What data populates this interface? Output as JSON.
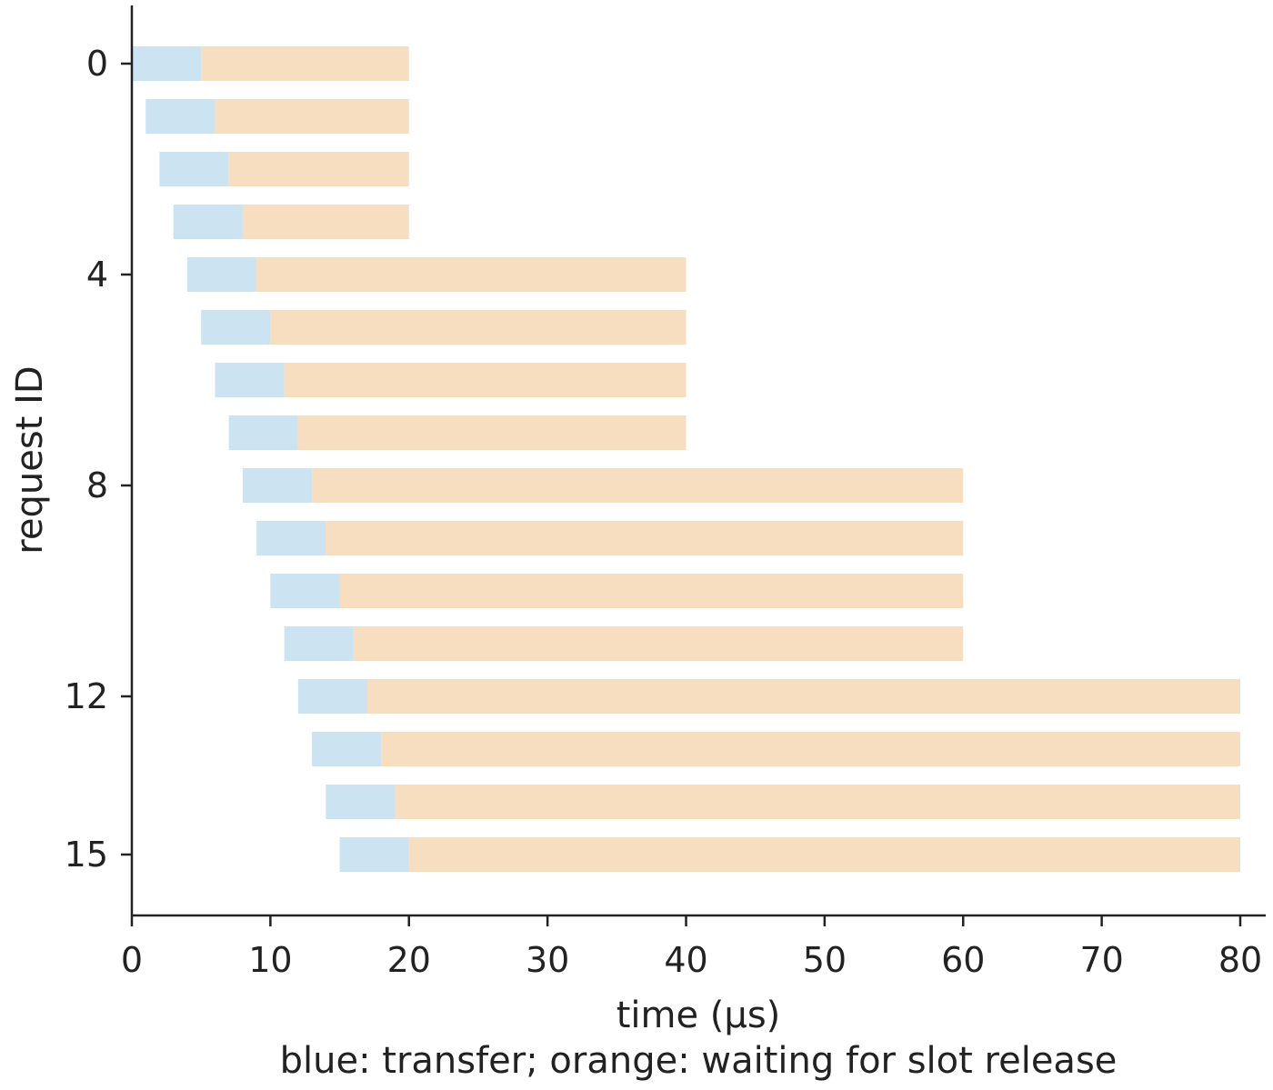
{
  "chart_data": {
    "type": "bar",
    "orientation": "horizontal-stacked",
    "xlabel": "time (µs)",
    "ylabel": "request ID",
    "caption": "blue: transfer; orange: waiting for slot release",
    "xlim": [
      0,
      80
    ],
    "ylim": [
      -0.5,
      15.5
    ],
    "x_ticks": [
      "0",
      "10",
      "20",
      "30",
      "40",
      "50",
      "60",
      "70",
      "80"
    ],
    "y_ticks": [
      "0",
      "4",
      "8",
      "12",
      "15"
    ],
    "grid": false,
    "colors": {
      "transfer": "#cce3f2",
      "waiting": "#f8dec0",
      "axis": "#222222"
    },
    "categories": [
      0,
      1,
      2,
      3,
      4,
      5,
      6,
      7,
      8,
      9,
      10,
      11,
      12,
      13,
      14,
      15
    ],
    "segments": [
      {
        "id": 0,
        "transfer_start": 0,
        "transfer_end": 5,
        "wait_end": 20
      },
      {
        "id": 1,
        "transfer_start": 1,
        "transfer_end": 6,
        "wait_end": 20
      },
      {
        "id": 2,
        "transfer_start": 2,
        "transfer_end": 7,
        "wait_end": 20
      },
      {
        "id": 3,
        "transfer_start": 3,
        "transfer_end": 8,
        "wait_end": 20
      },
      {
        "id": 4,
        "transfer_start": 4,
        "transfer_end": 9,
        "wait_end": 40
      },
      {
        "id": 5,
        "transfer_start": 5,
        "transfer_end": 10,
        "wait_end": 40
      },
      {
        "id": 6,
        "transfer_start": 6,
        "transfer_end": 11,
        "wait_end": 40
      },
      {
        "id": 7,
        "transfer_start": 7,
        "transfer_end": 12,
        "wait_end": 40
      },
      {
        "id": 8,
        "transfer_start": 8,
        "transfer_end": 13,
        "wait_end": 60
      },
      {
        "id": 9,
        "transfer_start": 9,
        "transfer_end": 14,
        "wait_end": 60
      },
      {
        "id": 10,
        "transfer_start": 10,
        "transfer_end": 15,
        "wait_end": 60
      },
      {
        "id": 11,
        "transfer_start": 11,
        "transfer_end": 16,
        "wait_end": 60
      },
      {
        "id": 12,
        "transfer_start": 12,
        "transfer_end": 17,
        "wait_end": 80
      },
      {
        "id": 13,
        "transfer_start": 13,
        "transfer_end": 18,
        "wait_end": 80
      },
      {
        "id": 14,
        "transfer_start": 14,
        "transfer_end": 19,
        "wait_end": 80
      },
      {
        "id": 15,
        "transfer_start": 15,
        "transfer_end": 20,
        "wait_end": 80
      }
    ]
  }
}
